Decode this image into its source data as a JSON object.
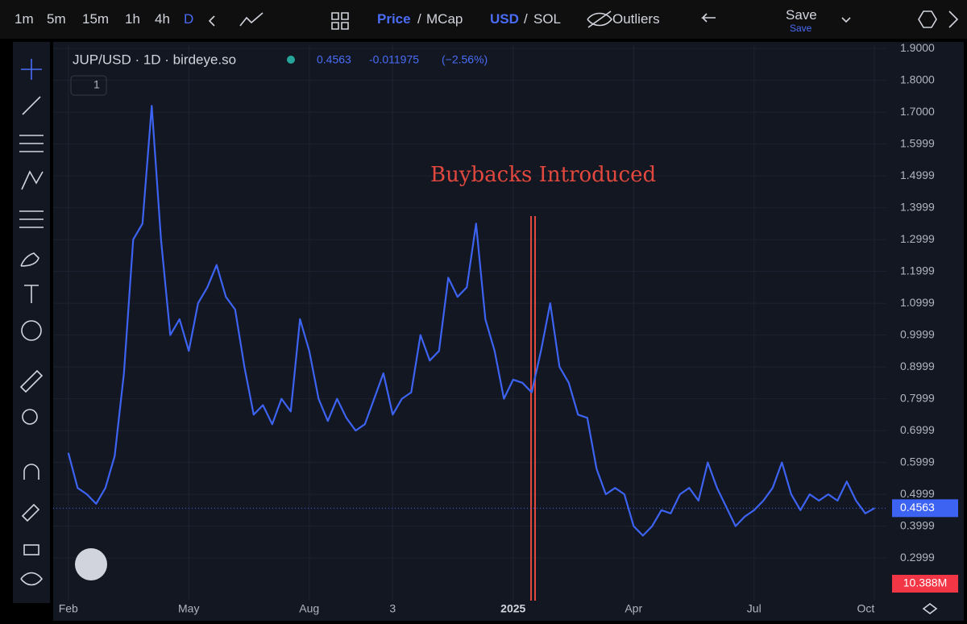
{
  "toolbar": {
    "intervals": [
      "1m",
      "5m",
      "15m",
      "1h",
      "4h",
      "D"
    ],
    "price": "Price",
    "price_sep": "/",
    "mcap": "MCap",
    "usd": "USD",
    "usd_sep": "/",
    "sol": "SOL",
    "outliers": "Outliers",
    "save": "Save",
    "save_sub": "Save"
  },
  "chart_data": {
    "type": "line",
    "title": "JUP/USD · 1D · birdeye.so",
    "change": "-0.011975",
    "change_pct": "(−2.56%)",
    "indicator_count": "1",
    "annotation": "Buybacks Introduced",
    "volume_label": "10.388M",
    "color": "#3d63f2",
    "categories": [
      "Feb",
      null,
      null,
      null,
      null,
      null,
      null,
      null,
      null,
      null,
      null,
      null,
      null,
      "May",
      null,
      null,
      null,
      null,
      null,
      null,
      null,
      null,
      null,
      null,
      null,
      null,
      "Aug",
      null,
      null,
      null,
      null,
      null,
      null,
      null,
      null,
      "3",
      null,
      null,
      null,
      null,
      null,
      null,
      null,
      null,
      null,
      null,
      null,
      null,
      "2025",
      null,
      null,
      null,
      null,
      null,
      null,
      null,
      null,
      null,
      null,
      null,
      null,
      "Apr",
      null,
      null,
      null,
      null,
      null,
      null,
      null,
      null,
      null,
      null,
      null,
      null,
      "Jul",
      null,
      null,
      null,
      null,
      null,
      null,
      null,
      null,
      null,
      null,
      null,
      null,
      "Oct"
    ],
    "values": [
      0.63,
      0.52,
      0.5,
      0.47,
      0.52,
      0.62,
      0.88,
      1.3,
      1.35,
      1.72,
      1.3,
      1.0,
      1.05,
      0.95,
      1.1,
      1.15,
      1.22,
      1.12,
      1.08,
      0.9,
      0.75,
      0.78,
      0.72,
      0.8,
      0.76,
      1.05,
      0.95,
      0.8,
      0.73,
      0.8,
      0.74,
      0.7,
      0.72,
      0.8,
      0.88,
      0.75,
      0.8,
      0.82,
      1.0,
      0.92,
      0.95,
      1.18,
      1.12,
      1.15,
      1.35,
      1.05,
      0.95,
      0.8,
      0.86,
      0.85,
      0.82,
      0.95,
      1.1,
      0.9,
      0.85,
      0.75,
      0.74,
      0.58,
      0.5,
      0.52,
      0.5,
      0.4,
      0.37,
      0.4,
      0.45,
      0.44,
      0.5,
      0.52,
      0.48,
      0.6,
      0.52,
      0.46,
      0.4,
      0.43,
      0.45,
      0.48,
      0.52,
      0.6,
      0.5,
      0.45,
      0.5,
      0.48,
      0.5,
      0.48,
      0.54,
      0.48,
      0.44,
      0.4563
    ],
    "ylim": [
      0.166,
      1.913
    ],
    "yticks": [
      {
        "value": 1.9,
        "label": "1.9000"
      },
      {
        "value": 1.8,
        "label": "1.8000"
      },
      {
        "value": 1.7,
        "label": "1.7000"
      },
      1.5999,
      1.4999,
      1.3999,
      1.2999,
      1.1999,
      1.0999,
      0.9999,
      0.8999,
      0.7999,
      0.6999,
      0.5999,
      0.4999,
      0.3999,
      0.2999
    ],
    "grid": true
  }
}
